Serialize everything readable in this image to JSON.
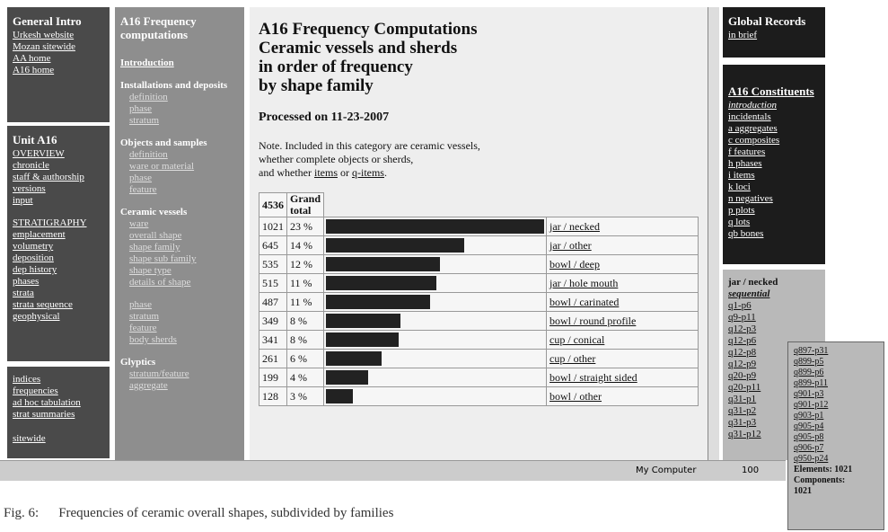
{
  "frames": {
    "intro": {
      "title": "General Intro",
      "links": [
        "Urkesh website",
        "Mozan sitewide",
        "AA home",
        "A16 home"
      ]
    },
    "unit": {
      "title": "Unit A16",
      "links": [
        "OVERVIEW",
        "chronicle",
        "staff & authorship",
        "versions",
        "input"
      ],
      "section": "STRATIGRAPHY",
      "links2": [
        "emplacement",
        "volumetry",
        "deposition",
        "dep history",
        "phases",
        "strata",
        "strata sequence",
        "geophysical"
      ]
    },
    "indices": {
      "links": [
        "indices",
        "frequencies",
        "ad hoc tabulation",
        "strat summaries"
      ],
      "last": "sitewide"
    },
    "nav": {
      "title": "A16 Frequency computations",
      "intro": "Introduction",
      "groups": [
        {
          "heading": "Installations and deposits",
          "links": [
            "definition",
            "phase",
            "stratum"
          ]
        },
        {
          "heading": "Objects and samples",
          "links": [
            "definition",
            "ware or material",
            "phase",
            "feature"
          ]
        },
        {
          "heading": "Ceramic vessels",
          "links": [
            "ware",
            "overall shape",
            "shape family",
            "shape sub family",
            "shape type",
            "details of shape"
          ]
        },
        {
          "heading": "",
          "links": [
            "phase",
            "stratum",
            "feature",
            "body sherds"
          ]
        },
        {
          "heading": "Glyptics",
          "links": [
            "stratum/feature",
            "aggregate"
          ]
        }
      ]
    },
    "global": {
      "title": "Global Records",
      "sub": "in brief"
    },
    "constituents": {
      "title": "A16 Constituents",
      "links": [
        "introduction",
        "incidentals",
        "a aggregates",
        "c composites",
        "f features",
        "h phases",
        "i items",
        "k loci",
        "n negatives",
        "p plots",
        "q lots",
        "qb bones"
      ]
    },
    "sequence": {
      "title": "jar / necked",
      "sub": "sequential",
      "links": [
        "q1-p6",
        "q9-p11",
        "q12-p3",
        "q12-p6",
        "q12-p8",
        "q12-p9",
        "q20-p9",
        "q20-p11",
        "q31-p1",
        "q31-p2",
        "q31-p3",
        "q31-p12"
      ]
    },
    "popup": {
      "links": [
        "q897-p31",
        "q899-p5",
        "q899-p6",
        "q899-p11",
        "q901-p3",
        "q901-p12",
        "q903-p1",
        "q905-p4",
        "q905-p8",
        "q906-p7",
        "q950-p24"
      ],
      "elements": "Elements: 1021",
      "components": "Components:",
      "components_value": "1021"
    }
  },
  "main": {
    "title": [
      "A16 Frequency Computations",
      "Ceramic vessels and sherds",
      "in order of frequency",
      "by shape family"
    ],
    "processed": "Processed on 11-23-2007",
    "note": [
      "Note. Included in this category are ceramic vessels,",
      "whether complete objects or sherds,"
    ],
    "note_last": [
      "and whether ",
      "items",
      " or ",
      "q-items",
      "."
    ],
    "total": {
      "count": 4536,
      "label": "Grand total"
    },
    "rows": [
      [
        1021,
        "23 %",
        "jar / necked"
      ],
      [
        645,
        "14 %",
        "jar / other"
      ],
      [
        535,
        "12 %",
        "bowl / deep"
      ],
      [
        515,
        "11 %",
        "jar / hole mouth"
      ],
      [
        487,
        "11 %",
        "bowl / carinated"
      ],
      [
        349,
        "8 %",
        "bowl / round profile"
      ],
      [
        341,
        "8 %",
        "cup / conical"
      ],
      [
        261,
        "6 %",
        "cup / other"
      ],
      [
        199,
        "4 %",
        "bowl / straight sided"
      ],
      [
        128,
        "3 %",
        "bowl / other"
      ]
    ]
  },
  "status": {
    "computer": "My Computer",
    "zoom": "100"
  },
  "caption": {
    "label": "Fig. 6:",
    "text": "Frequencies of ceramic overall shapes, subdivided by families"
  }
}
